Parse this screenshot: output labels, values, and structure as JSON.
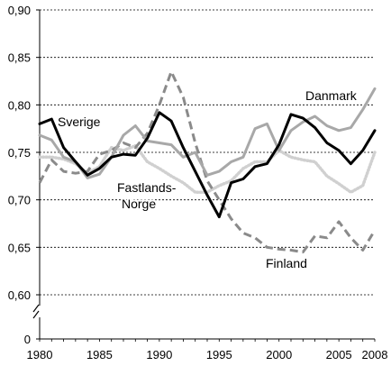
{
  "chart_data": {
    "type": "line",
    "title": "",
    "xlabel": "",
    "ylabel": "",
    "x": [
      1980,
      1981,
      1982,
      1983,
      1984,
      1985,
      1986,
      1987,
      1988,
      1989,
      1990,
      1991,
      1992,
      1993,
      1994,
      1995,
      1996,
      1997,
      1998,
      1999,
      2000,
      2001,
      2002,
      2003,
      2004,
      2005,
      2006,
      2007,
      2008
    ],
    "xlim": [
      1980,
      2008
    ],
    "ylim": [
      0.6,
      0.9
    ],
    "axis_break": true,
    "y_ticks": [
      "0",
      "0,60",
      "0,65",
      "0,70",
      "0,75",
      "0,80",
      "0,85",
      "0,90"
    ],
    "x_ticks": [
      "1980",
      "1985",
      "1990",
      "1995",
      "2000",
      "2005",
      "2008"
    ],
    "y_tick_values": [
      0.6,
      0.65,
      0.7,
      0.75,
      0.8,
      0.85,
      0.9
    ],
    "x_tick_values": [
      1980,
      1985,
      1990,
      1995,
      2000,
      2005,
      2008
    ],
    "grid": "horizontal-dashed",
    "series": [
      {
        "name": "Sverige",
        "color": "#000000",
        "style": "solid",
        "values": [
          0.78,
          0.785,
          0.755,
          0.74,
          0.726,
          0.733,
          0.745,
          0.748,
          0.747,
          0.765,
          0.792,
          0.783,
          0.755,
          0.73,
          0.705,
          0.682,
          0.718,
          0.722,
          0.735,
          0.738,
          0.758,
          0.79,
          0.786,
          0.776,
          0.76,
          0.752,
          0.738,
          0.752,
          0.773
        ]
      },
      {
        "name": "Danmark",
        "color": "#a8a8a8",
        "style": "solid",
        "values": [
          0.768,
          0.763,
          0.745,
          0.74,
          0.723,
          0.727,
          0.745,
          0.768,
          0.778,
          0.762,
          0.76,
          0.758,
          0.745,
          0.75,
          0.726,
          0.73,
          0.74,
          0.745,
          0.775,
          0.78,
          0.752,
          0.773,
          0.782,
          0.788,
          0.778,
          0.773,
          0.776,
          0.795,
          0.817
        ]
      },
      {
        "name": "Fastlands-Norge",
        "color": "#d0d0d0",
        "style": "dotted",
        "values": [
          0.745,
          0.745,
          0.743,
          0.738,
          0.728,
          0.735,
          0.755,
          0.752,
          0.757,
          0.74,
          0.733,
          0.725,
          0.718,
          0.708,
          0.708,
          0.715,
          0.72,
          0.733,
          0.74,
          0.74,
          0.752,
          0.745,
          0.742,
          0.74,
          0.725,
          0.717,
          0.708,
          0.715,
          0.75
        ]
      },
      {
        "name": "Finland",
        "color": "#8a8a8a",
        "style": "dashed",
        "values": [
          0.718,
          0.742,
          0.73,
          0.728,
          0.73,
          0.748,
          0.752,
          0.76,
          0.755,
          0.77,
          0.8,
          0.835,
          0.808,
          0.76,
          0.72,
          0.7,
          0.68,
          0.665,
          0.66,
          0.65,
          0.648,
          0.647,
          0.645,
          0.662,
          0.66,
          0.677,
          0.66,
          0.647,
          0.668
        ]
      }
    ],
    "labels": {
      "sverige": "Sverige",
      "danmark": "Danmark",
      "norge_line1": "Fastlands-",
      "norge_line2": "Norge",
      "finland": "Finland"
    }
  }
}
